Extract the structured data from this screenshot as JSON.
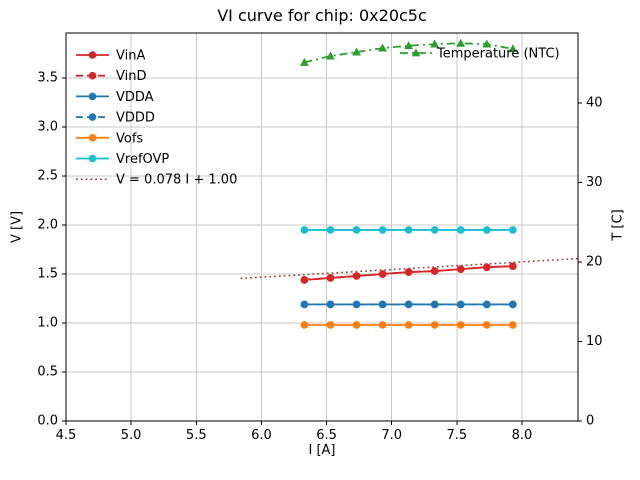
{
  "chart_data": {
    "type": "line",
    "title": "VI curve for chip: 0x20c5c",
    "xlabel": "I [A]",
    "ylabel_left": "V [V]",
    "ylabel_right": "T [C]",
    "x": [
      6.33,
      6.53,
      6.73,
      6.93,
      7.13,
      7.33,
      7.53,
      7.73,
      7.93
    ],
    "series": [
      {
        "name": "VinA",
        "color": "#d62728",
        "linestyle": "solid",
        "marker": "circle",
        "axis": "left",
        "values": [
          1.44,
          1.46,
          1.48,
          1.5,
          1.52,
          1.53,
          1.55,
          1.57,
          1.58
        ]
      },
      {
        "name": "VinD",
        "color": "#d62728",
        "linestyle": "dashed",
        "marker": "circle",
        "axis": "left",
        "values": [
          1.44,
          1.46,
          1.48,
          1.5,
          1.52,
          1.53,
          1.55,
          1.57,
          1.58
        ]
      },
      {
        "name": "VDDA",
        "color": "#1f77b4",
        "linestyle": "solid",
        "marker": "circle",
        "axis": "left",
        "values": [
          1.19,
          1.19,
          1.19,
          1.19,
          1.19,
          1.19,
          1.19,
          1.19,
          1.19
        ]
      },
      {
        "name": "VDDD",
        "color": "#1f77b4",
        "linestyle": "dashed",
        "marker": "circle",
        "axis": "left",
        "values": [
          1.19,
          1.19,
          1.19,
          1.19,
          1.19,
          1.19,
          1.19,
          1.19,
          1.19
        ]
      },
      {
        "name": "Vofs",
        "color": "#ff7f0e",
        "linestyle": "solid",
        "marker": "circle",
        "axis": "left",
        "values": [
          0.98,
          0.98,
          0.98,
          0.98,
          0.98,
          0.98,
          0.98,
          0.98,
          0.98
        ]
      },
      {
        "name": "VrefOVP",
        "color": "#17becf",
        "linestyle": "solid",
        "marker": "circle",
        "axis": "left",
        "values": [
          1.95,
          1.95,
          1.95,
          1.95,
          1.95,
          1.95,
          1.95,
          1.95,
          1.95
        ]
      }
    ],
    "fit_line": {
      "label": "V = 0.078 I + 1.00",
      "slope": 0.078,
      "intercept": 1.0,
      "x_range": [
        5.84,
        8.43
      ],
      "color": "#92423c",
      "linestyle": "dotted"
    },
    "temperature_series": {
      "name": "Temperature (NTC)",
      "color": "#2ca02c",
      "linestyle": "dashdot",
      "marker": "triangle",
      "axis": "right",
      "values": [
        45.1,
        45.9,
        46.4,
        46.9,
        47.2,
        47.4,
        47.5,
        47.4,
        46.8
      ]
    },
    "axes": {
      "xlim": [
        4.5,
        8.43
      ],
      "xticks": [
        "4.5",
        "5.0",
        "5.5",
        "6.0",
        "6.5",
        "7.0",
        "7.5",
        "8.0"
      ],
      "ylim_left": [
        0,
        3.96
      ],
      "yticks_left": [
        "0.0",
        "0.5",
        "1.0",
        "1.5",
        "2.0",
        "2.5",
        "3.0",
        "3.5"
      ],
      "ylim_right": [
        0,
        48.8
      ],
      "yticks_right": [
        "0",
        "10",
        "20",
        "30",
        "40"
      ],
      "grid": true
    },
    "legend_left_position": "upper left",
    "legend_right_position": "upper right"
  },
  "colors": {
    "grid": "#c9c9c9",
    "spine": "#000000",
    "text": "#000000",
    "background": "#ffffff"
  }
}
